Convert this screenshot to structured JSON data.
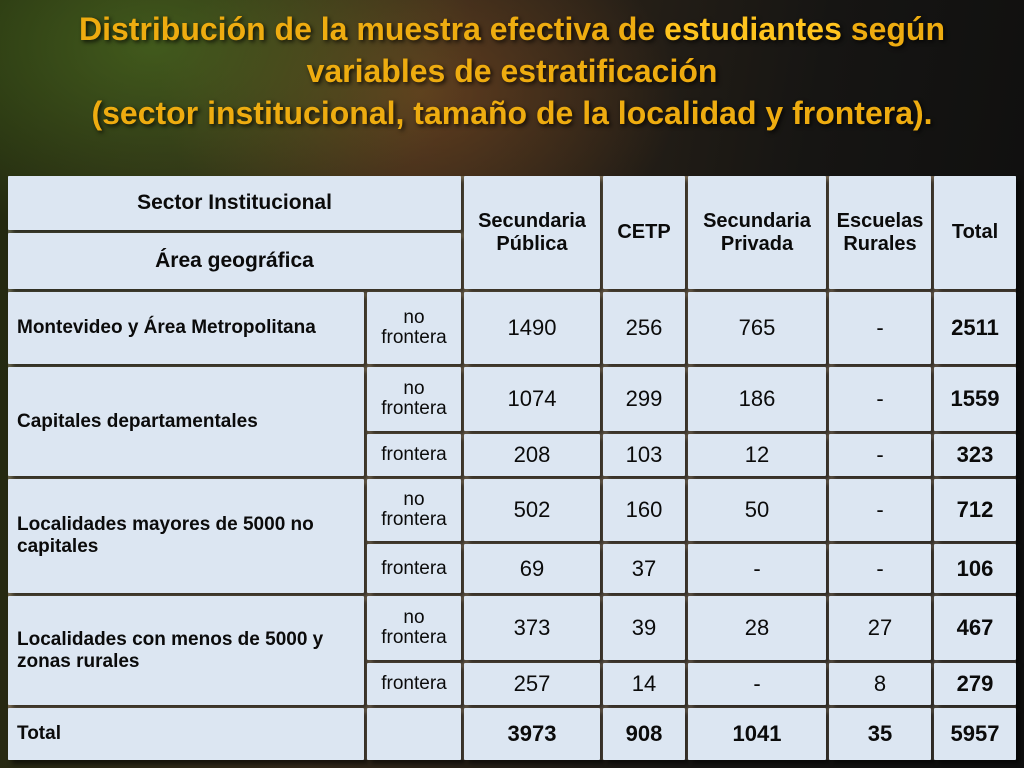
{
  "slide": {
    "title": {
      "l1a": "Distribución de la muestra efectiva de ",
      "l1b": "estudiantes",
      "l1c": " según",
      "l2": "variables de estratificación",
      "l3": "(sector institucional, tamaño de la localidad y frontera)."
    }
  },
  "table": {
    "header": {
      "sector": "Sector Institucional",
      "area": "Área geográfica",
      "col_secundaria_publica": "Secundaria Pública",
      "col_cetp": "CETP",
      "col_secundaria_privada": "Secundaria Privada",
      "col_escuelas_rurales": "Escuelas Rurales",
      "col_total": "Total"
    },
    "groups": [
      {
        "label": "Montevideo y Área Metropolitana",
        "rows": [
          {
            "frontera": "no frontera",
            "values": [
              "1490",
              "256",
              "765",
              "-",
              "2511"
            ]
          }
        ]
      },
      {
        "label": "Capitales departamentales",
        "rows": [
          {
            "frontera": "no frontera",
            "values": [
              "1074",
              "299",
              "186",
              "-",
              "1559"
            ]
          },
          {
            "frontera": "frontera",
            "values": [
              "208",
              "103",
              "12",
              "-",
              "323"
            ]
          }
        ]
      },
      {
        "label": "Localidades mayores de 5000 no capitales",
        "rows": [
          {
            "frontera": "no frontera",
            "values": [
              "502",
              "160",
              "50",
              "-",
              "712"
            ]
          },
          {
            "frontera": "frontera",
            "values": [
              "69",
              "37",
              "-",
              "-",
              "106"
            ]
          }
        ]
      },
      {
        "label": "Localidades con menos de 5000 y zonas rurales",
        "rows": [
          {
            "frontera": "no frontera",
            "values": [
              "373",
              "39",
              "28",
              "27",
              "467"
            ]
          },
          {
            "frontera": "frontera",
            "values": [
              "257",
              "14",
              "-",
              "8",
              "279"
            ]
          }
        ]
      }
    ],
    "total_row": {
      "label": "Total",
      "values": [
        "3973",
        "908",
        "1041",
        "35",
        "5957"
      ]
    }
  }
}
